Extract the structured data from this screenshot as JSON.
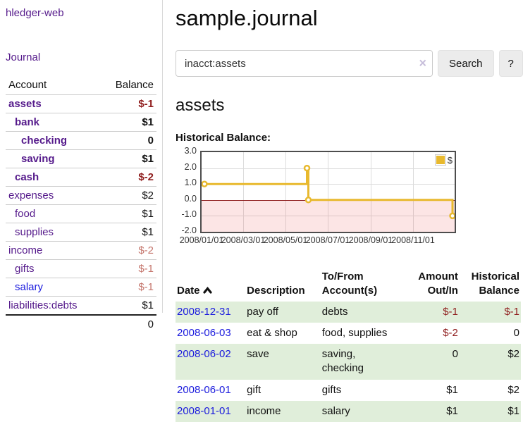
{
  "colors": {
    "link_purple": "#551a8b",
    "link_blue": "#1a1add",
    "negative_red": "#8f1d1d",
    "muted_red": "#c5766d",
    "row_green": "#e0eeda",
    "series_gold": "#e8b92e"
  },
  "sidebar": {
    "brand": "hledger-web",
    "nav_journal": "Journal",
    "table": {
      "headers": [
        "Account",
        "Balance"
      ],
      "rows": [
        {
          "account": "assets",
          "depth": 1,
          "bold": true,
          "balance": "$-1",
          "balance_style": "neg",
          "link_style": "purple"
        },
        {
          "account": "bank",
          "depth": 2,
          "bold": true,
          "balance": "$1",
          "balance_style": "pos",
          "link_style": "purple"
        },
        {
          "account": "checking",
          "depth": 3,
          "bold": true,
          "balance": "0",
          "balance_style": "pos",
          "link_style": "purple"
        },
        {
          "account": "saving",
          "depth": 3,
          "bold": true,
          "balance": "$1",
          "balance_style": "pos",
          "link_style": "purple"
        },
        {
          "account": "cash",
          "depth": 2,
          "bold": true,
          "balance": "$-2",
          "balance_style": "neg",
          "link_style": "purple"
        },
        {
          "account": "expenses",
          "depth": 1,
          "bold": false,
          "balance": "$2",
          "balance_style": "pos",
          "link_style": "purple"
        },
        {
          "account": "food",
          "depth": 2,
          "bold": false,
          "balance": "$1",
          "balance_style": "pos",
          "link_style": "purple"
        },
        {
          "account": "supplies",
          "depth": 2,
          "bold": false,
          "balance": "$1",
          "balance_style": "pos",
          "link_style": "purple"
        },
        {
          "account": "income",
          "depth": 1,
          "bold": false,
          "balance": "$-2",
          "balance_style": "negmuted",
          "link_style": "purple"
        },
        {
          "account": "gifts",
          "depth": 2,
          "bold": false,
          "balance": "$-1",
          "balance_style": "negmuted",
          "link_style": "purple"
        },
        {
          "account": "salary",
          "depth": 2,
          "bold": false,
          "balance": "$-1",
          "balance_style": "negmuted",
          "link_style": "blue"
        },
        {
          "account": "liabilities:debts",
          "depth": 1,
          "bold": false,
          "balance": "$1",
          "balance_style": "pos",
          "link_style": "purple"
        }
      ],
      "total": "0"
    }
  },
  "main": {
    "title": "sample.journal",
    "search": {
      "value": "inacct:assets",
      "clear_icon": "×",
      "button_label": "Search",
      "help_label": "?"
    },
    "account_heading": "assets",
    "chart_label": "Historical Balance:"
  },
  "chart_data": {
    "type": "line",
    "step": true,
    "title": "Historical Balance",
    "series": [
      {
        "name": "$",
        "color": "#e8b92e",
        "points": [
          [
            "2008-01-01",
            1
          ],
          [
            "2008-06-01",
            2
          ],
          [
            "2008-06-03",
            0
          ],
          [
            "2008-12-31",
            -1
          ]
        ]
      }
    ],
    "x_ticks": [
      "2008/01/01",
      "2008/03/01",
      "2008/05/01",
      "2008/07/01",
      "2008/09/01",
      "2008/11/01"
    ],
    "y_ticks": [
      "3.0",
      "2.0",
      "1.0",
      "0.0",
      "-1.0",
      "-2.0"
    ],
    "xlim": [
      "2008-01-01",
      "2008-12-31"
    ],
    "ylim": [
      -2,
      3
    ],
    "grid": true,
    "legend": "$",
    "legend_position": "top-right",
    "negative_region": true,
    "zero_line_color": "#8e1f1f"
  },
  "register": {
    "headers": {
      "date": "Date",
      "description": "Description",
      "accounts": "To/From Account(s)",
      "amount": "Amount Out/In",
      "balance": "Historical Balance"
    },
    "rows": [
      {
        "date": "2008-12-31",
        "description": "pay off",
        "accounts": "debts",
        "amount": "$-1",
        "amount_style": "neg",
        "balance": "$-1",
        "balance_style": "neg",
        "shaded": true
      },
      {
        "date": "2008-06-03",
        "description": "eat & shop",
        "accounts": "food, supplies",
        "amount": "$-2",
        "amount_style": "neg",
        "balance": "0",
        "balance_style": "pos",
        "shaded": false
      },
      {
        "date": "2008-06-02",
        "description": "save",
        "accounts": "saving, checking",
        "amount": "0",
        "amount_style": "pos",
        "balance": "$2",
        "balance_style": "pos",
        "shaded": true
      },
      {
        "date": "2008-06-01",
        "description": "gift",
        "accounts": "gifts",
        "amount": "$1",
        "amount_style": "pos",
        "balance": "$2",
        "balance_style": "pos",
        "shaded": false
      },
      {
        "date": "2008-01-01",
        "description": "income",
        "accounts": "salary",
        "amount": "$1",
        "amount_style": "pos",
        "balance": "$1",
        "balance_style": "pos",
        "shaded": true
      }
    ]
  }
}
